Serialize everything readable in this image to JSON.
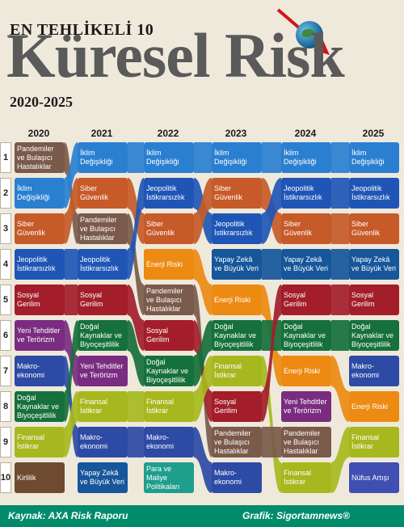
{
  "header": {
    "top_title": "EN TEHLİKELİ 10",
    "main_title": "Küresel Risk",
    "years_range": "2020-2025"
  },
  "chart_data": {
    "type": "table",
    "years": [
      "2020",
      "2021",
      "2022",
      "2023",
      "2024",
      "2025"
    ],
    "ranks": [
      "1",
      "2",
      "3",
      "4",
      "5",
      "6",
      "7",
      "8",
      "9",
      "10"
    ],
    "risk_colors": {
      "Pandemiler ve Bulaşıcı Hastalıklar": "#7a5a4a",
      "İklim Değişikliği": "#2a7fd0",
      "Siber Güvenlik": "#c65a28",
      "Jeopolitik İstikrarsızlık": "#1f56b6",
      "Sosyal Gerilim": "#a31d2a",
      "Yeni Tehditler ve Terörizm": "#7a2c80",
      "Makro-ekonomi": "#2d4aa5",
      "Doğal Kaynaklar ve Biyoçeşitlilik": "#16703b",
      "Finansal İstikrar": "#a6b81e",
      "Kirlilik": "#6e4a30",
      "Yapay Zekâ ve Büyük Veri": "#16569a",
      "Para ve Maliye Politikaları": "#1e9e8c",
      "Enerji Riski": "#ec8a12",
      "Nüfus Artışı": "#3f4fb2"
    },
    "columns": [
      {
        "year": "2020",
        "cells": [
          {
            "label": "Pandemiler ve Bulaşıcı Hastalıklar",
            "color": "#7a5a4a"
          },
          {
            "label": "İklim Değişikliği",
            "color": "#2a7fd0"
          },
          {
            "label": "Siber Güvenlik",
            "color": "#c65a28"
          },
          {
            "label": "Jeopolitik İstikrarsızlık",
            "color": "#1f56b6"
          },
          {
            "label": "Sosyal Gerilim",
            "color": "#a31d2a"
          },
          {
            "label": "Yeni Tehditler ve Terörizm",
            "color": "#7a2c80"
          },
          {
            "label": "Makro-ekonomi",
            "color": "#2d4aa5"
          },
          {
            "label": "Doğal Kaynaklar ve Biyoçeşitlilik",
            "color": "#16703b"
          },
          {
            "label": "Finansal İstikrar",
            "color": "#a6b81e"
          },
          {
            "label": "Kirlilik",
            "color": "#6e4a30"
          }
        ]
      },
      {
        "year": "2021",
        "cells": [
          {
            "label": "İklim Değişikliği",
            "color": "#2a7fd0"
          },
          {
            "label": "Siber Güvenlik",
            "color": "#c65a28"
          },
          {
            "label": "Pandemiler ve Bulaşıcı Hastalıklar",
            "color": "#7a5a4a"
          },
          {
            "label": "Jeopolitik İstikrarsızlık",
            "color": "#1f56b6"
          },
          {
            "label": "Sosyal Gerilim",
            "color": "#a31d2a"
          },
          {
            "label": "Doğal Kaynaklar ve Biyoçeşitlilik",
            "color": "#16703b"
          },
          {
            "label": "Yeni Tehditler ve Terörizm",
            "color": "#7a2c80"
          },
          {
            "label": "Finansal İstikrar",
            "color": "#a6b81e"
          },
          {
            "label": "Makro-ekonomi",
            "color": "#2d4aa5"
          },
          {
            "label": "Yapay Zekâ ve Büyük Veri",
            "color": "#16569a"
          }
        ]
      },
      {
        "year": "2022",
        "cells": [
          {
            "label": "İklim Değişikliği",
            "color": "#2a7fd0"
          },
          {
            "label": "Jeopolitik İstikrarsızlık",
            "color": "#1f56b6"
          },
          {
            "label": "Siber Güvenlik",
            "color": "#c65a28"
          },
          {
            "label": "Enerji Riski",
            "color": "#ec8a12"
          },
          {
            "label": "Pandemiler ve Bulaşıcı Hastalıklar",
            "color": "#7a5a4a"
          },
          {
            "label": "Sosyal Gerilim",
            "color": "#a31d2a"
          },
          {
            "label": "Doğal Kaynaklar ve Biyoçeşitlilik",
            "color": "#16703b"
          },
          {
            "label": "Finansal İstikrar",
            "color": "#a6b81e"
          },
          {
            "label": "Makro-ekonomi",
            "color": "#2d4aa5"
          },
          {
            "label": "Para ve Maliye Politikaları",
            "color": "#1e9e8c"
          }
        ]
      },
      {
        "year": "2023",
        "cells": [
          {
            "label": "İklim Değişikliği",
            "color": "#2a7fd0"
          },
          {
            "label": "Siber Güvenlik",
            "color": "#c65a28"
          },
          {
            "label": "Jeopolitik İstikrarsızlık",
            "color": "#1f56b6"
          },
          {
            "label": "Yapay Zekâ ve Büyük Veri",
            "color": "#16569a"
          },
          {
            "label": "Enerji Riski",
            "color": "#ec8a12"
          },
          {
            "label": "Doğal Kaynaklar ve Biyoçeşitlilik",
            "color": "#16703b"
          },
          {
            "label": "Finansal İstikrar",
            "color": "#a6b81e"
          },
          {
            "label": "Sosyal Gerilim",
            "color": "#a31d2a"
          },
          {
            "label": "Pandemiler ve Bulaşıcı Hastalıklar",
            "color": "#7a5a4a"
          },
          {
            "label": "Makro-ekonomi",
            "color": "#2d4aa5"
          }
        ]
      },
      {
        "year": "2024",
        "cells": [
          {
            "label": "İklim Değişikliği",
            "color": "#2a7fd0"
          },
          {
            "label": "Jeopolitik İstikrarsızlık",
            "color": "#1f56b6"
          },
          {
            "label": "Siber Güvenlik",
            "color": "#c65a28"
          },
          {
            "label": "Yapay Zekâ ve Büyük Veri",
            "color": "#16569a"
          },
          {
            "label": "Sosyal Gerilim",
            "color": "#a31d2a"
          },
          {
            "label": "Doğal Kaynaklar ve Biyoçeşitlilik",
            "color": "#16703b"
          },
          {
            "label": "Enerji Riski",
            "color": "#ec8a12"
          },
          {
            "label": "Yeni Tehditler ve Terörizm",
            "color": "#7a2c80"
          },
          {
            "label": "Pandemiler ve Bulaşıcı Hastalıklar",
            "color": "#7a5a4a"
          },
          {
            "label": "Finansal İstikrar",
            "color": "#a6b81e"
          }
        ]
      },
      {
        "year": "2025",
        "cells": [
          {
            "label": "İklim Değişikliği",
            "color": "#2a7fd0"
          },
          {
            "label": "Jeopolitik İstikrarsızlık",
            "color": "#1f56b6"
          },
          {
            "label": "Siber Güvenlik",
            "color": "#c65a28"
          },
          {
            "label": "Yapay Zekâ ve Büyük Veri",
            "color": "#16569a"
          },
          {
            "label": "Sosyal Gerilim",
            "color": "#a31d2a"
          },
          {
            "label": "Doğal Kaynaklar ve Biyoçeşitlilik",
            "color": "#16703b"
          },
          {
            "label": "Makro-ekonomi",
            "color": "#2d4aa5"
          },
          {
            "label": "Enerji Riski",
            "color": "#ec8a12"
          },
          {
            "label": "Finansal İstikrar",
            "color": "#a6b81e"
          },
          {
            "label": "Nüfus Artışı",
            "color": "#3f4fb2"
          }
        ]
      }
    ]
  },
  "footer": {
    "source": "Kaynak: AXA Risk Raporu",
    "credit": "Grafik: Sigortamnews®"
  }
}
